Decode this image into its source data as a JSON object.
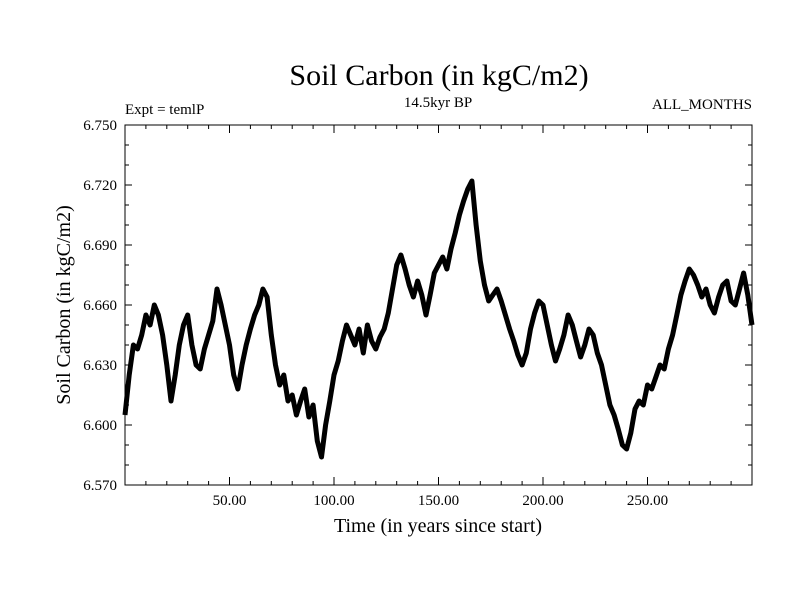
{
  "chart_data": {
    "type": "line",
    "title": "Soil Carbon (in kgC/m2)",
    "subtitle_left": "Expt = temlP",
    "subtitle_center": "14.5kyr BP",
    "subtitle_right": "ALL_MONTHS",
    "xlabel": "Time (in years since start)",
    "ylabel": "Soil Carbon (in kgC/m2)",
    "xlim": [
      0,
      300
    ],
    "ylim": [
      6.57,
      6.75
    ],
    "x_ticks": [
      50,
      100,
      150,
      200,
      250
    ],
    "x_tick_labels": [
      "50.00",
      "100.00",
      "150.00",
      "200.00",
      "250.00"
    ],
    "y_ticks": [
      6.57,
      6.6,
      6.63,
      6.66,
      6.69,
      6.72,
      6.75
    ],
    "y_tick_labels": [
      "6.570",
      "6.600",
      "6.630",
      "6.660",
      "6.690",
      "6.720",
      "6.750"
    ],
    "series": [
      {
        "name": "Soil Carbon",
        "color": "#000000",
        "x": [
          0,
          2,
          4,
          6,
          8,
          10,
          12,
          14,
          16,
          18,
          20,
          22,
          24,
          26,
          28,
          30,
          32,
          34,
          36,
          38,
          40,
          42,
          44,
          46,
          48,
          50,
          52,
          54,
          56,
          58,
          60,
          62,
          64,
          66,
          68,
          70,
          72,
          74,
          76,
          78,
          80,
          82,
          84,
          86,
          88,
          90,
          92,
          94,
          96,
          98,
          100,
          102,
          104,
          106,
          108,
          110,
          112,
          114,
          116,
          118,
          120,
          122,
          124,
          126,
          128,
          130,
          132,
          134,
          136,
          138,
          140,
          142,
          144,
          146,
          148,
          150,
          152,
          154,
          156,
          158,
          160,
          162,
          164,
          166,
          168,
          170,
          172,
          174,
          176,
          178,
          180,
          182,
          184,
          186,
          188,
          190,
          192,
          194,
          196,
          198,
          200,
          202,
          204,
          206,
          208,
          210,
          212,
          214,
          216,
          218,
          220,
          222,
          224,
          226,
          228,
          230,
          232,
          234,
          236,
          238,
          240,
          242,
          244,
          246,
          248,
          250,
          252,
          254,
          256,
          258,
          260,
          262,
          264,
          266,
          268,
          270,
          272,
          274,
          276,
          278,
          280,
          282,
          284,
          286,
          288,
          290,
          292,
          294,
          296,
          298,
          300
        ],
        "values": [
          6.605,
          6.625,
          6.64,
          6.638,
          6.645,
          6.655,
          6.65,
          6.66,
          6.655,
          6.645,
          6.63,
          6.612,
          6.625,
          6.64,
          6.65,
          6.655,
          6.64,
          6.63,
          6.628,
          6.638,
          6.645,
          6.652,
          6.668,
          6.66,
          6.65,
          6.64,
          6.625,
          6.618,
          6.63,
          6.64,
          6.648,
          6.655,
          6.66,
          6.668,
          6.664,
          6.645,
          6.63,
          6.62,
          6.625,
          6.612,
          6.615,
          6.605,
          6.612,
          6.618,
          6.604,
          6.61,
          6.592,
          6.584,
          6.6,
          6.612,
          6.625,
          6.632,
          6.642,
          6.65,
          6.645,
          6.64,
          6.648,
          6.636,
          6.65,
          6.642,
          6.638,
          6.644,
          6.648,
          6.656,
          6.668,
          6.68,
          6.685,
          6.678,
          6.67,
          6.664,
          6.672,
          6.665,
          6.655,
          6.665,
          6.676,
          6.68,
          6.684,
          6.678,
          6.688,
          6.696,
          6.705,
          6.712,
          6.718,
          6.722,
          6.7,
          6.682,
          6.67,
          6.662,
          6.665,
          6.668,
          6.662,
          6.655,
          6.648,
          6.642,
          6.635,
          6.63,
          6.636,
          6.648,
          6.656,
          6.662,
          6.66,
          6.65,
          6.64,
          6.632,
          6.638,
          6.645,
          6.655,
          6.65,
          6.642,
          6.634,
          6.64,
          6.648,
          6.645,
          6.636,
          6.63,
          6.62,
          6.61,
          6.605,
          6.598,
          6.59,
          6.588,
          6.596,
          6.608,
          6.612,
          6.61,
          6.62,
          6.618,
          6.624,
          6.63,
          6.628,
          6.638,
          6.645,
          6.655,
          6.665,
          6.672,
          6.678,
          6.675,
          6.67,
          6.664,
          6.668,
          6.66,
          6.656,
          6.664,
          6.67,
          6.672,
          6.662,
          6.66,
          6.668,
          6.676,
          6.665,
          6.65
        ]
      }
    ]
  }
}
